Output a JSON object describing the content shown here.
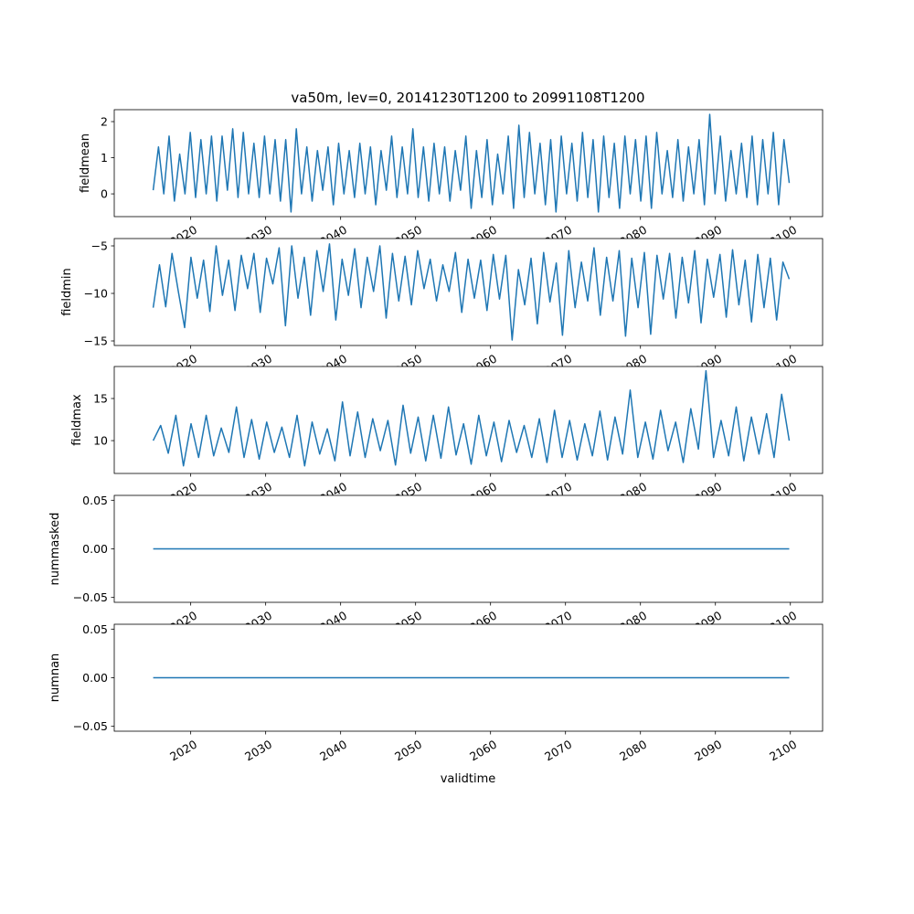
{
  "chart_data": {
    "type": "line",
    "title": "va50m, lev=0, 20141230T1200 to 20991108T1200",
    "xlabel": "validtime",
    "x_range": [
      2014.99,
      2099.85
    ],
    "xlim": [
      2009.8,
      2104.3
    ],
    "x_ticks": [
      2020,
      2030,
      2040,
      2050,
      2060,
      2070,
      2080,
      2090,
      2100
    ],
    "x_tick_labels": [
      "2020",
      "2030",
      "2040",
      "2050",
      "2060",
      "2070",
      "2080",
      "2090",
      "2100"
    ],
    "color": "#1f77b4",
    "panels": [
      {
        "ylabel": "fieldmean",
        "ylim": [
          -0.63,
          2.33
        ],
        "yticks": [
          0,
          1,
          2
        ],
        "ytick_labels": [
          "0",
          "1",
          "2"
        ],
        "values": [
          0.1,
          1.3,
          0.0,
          1.6,
          -0.2,
          1.1,
          0.0,
          1.7,
          -0.1,
          1.5,
          0.0,
          1.6,
          -0.2,
          1.6,
          0.1,
          1.8,
          -0.1,
          1.7,
          0.0,
          1.4,
          -0.1,
          1.6,
          0.0,
          1.5,
          -0.2,
          1.5,
          -0.5,
          1.8,
          0.0,
          1.3,
          -0.2,
          1.2,
          0.1,
          1.3,
          -0.3,
          1.4,
          0.0,
          1.2,
          -0.1,
          1.4,
          0.0,
          1.3,
          -0.3,
          1.2,
          0.1,
          1.6,
          -0.1,
          1.3,
          0.0,
          1.8,
          -0.1,
          1.3,
          -0.2,
          1.4,
          0.0,
          1.3,
          -0.2,
          1.2,
          0.1,
          1.6,
          -0.4,
          1.2,
          -0.1,
          1.5,
          -0.3,
          1.1,
          0.0,
          1.6,
          -0.4,
          1.9,
          -0.1,
          1.7,
          0.0,
          1.4,
          -0.3,
          1.5,
          -0.5,
          1.6,
          0.0,
          1.4,
          -0.2,
          1.7,
          -0.1,
          1.5,
          -0.5,
          1.6,
          -0.1,
          1.4,
          -0.4,
          1.6,
          0.0,
          1.5,
          -0.2,
          1.6,
          -0.4,
          1.7,
          0.0,
          1.2,
          -0.1,
          1.5,
          -0.2,
          1.3,
          0.0,
          1.5,
          -0.3,
          2.2,
          0.0,
          1.6,
          -0.2,
          1.2,
          0.0,
          1.4,
          -0.1,
          1.6,
          -0.3,
          1.5,
          0.0,
          1.7,
          -0.3,
          1.5,
          0.3
        ]
      },
      {
        "ylabel": "fieldmin",
        "ylim": [
          -15.48,
          -4.23
        ],
        "yticks": [
          -15,
          -10,
          -5
        ],
        "ytick_labels": [
          "−15",
          "−10",
          "−5"
        ],
        "values": [
          -11.5,
          -7.0,
          -11.4,
          -5.8,
          -9.8,
          -13.6,
          -6.2,
          -10.5,
          -6.5,
          -11.9,
          -5.0,
          -10.2,
          -6.5,
          -11.8,
          -6.0,
          -9.5,
          -5.8,
          -12.0,
          -6.3,
          -9.0,
          -5.2,
          -13.4,
          -5.0,
          -10.5,
          -6.2,
          -12.3,
          -5.5,
          -9.8,
          -4.8,
          -12.8,
          -6.4,
          -10.2,
          -5.3,
          -11.5,
          -6.2,
          -9.8,
          -5.0,
          -12.6,
          -5.8,
          -10.8,
          -6.1,
          -11.2,
          -5.5,
          -9.5,
          -6.4,
          -10.8,
          -7.0,
          -9.8,
          -5.7,
          -12.0,
          -6.4,
          -10.5,
          -6.5,
          -11.8,
          -5.9,
          -10.6,
          -6.0,
          -14.9,
          -7.5,
          -11.2,
          -6.3,
          -13.2,
          -5.7,
          -10.9,
          -6.8,
          -14.4,
          -5.5,
          -11.5,
          -6.7,
          -10.8,
          -5.2,
          -12.3,
          -6.2,
          -10.8,
          -5.5,
          -14.5,
          -6.3,
          -11.5,
          -5.7,
          -14.3,
          -6.0,
          -10.6,
          -5.8,
          -12.6,
          -6.2,
          -11.0,
          -5.5,
          -13.1,
          -6.4,
          -10.4,
          -5.9,
          -12.5,
          -5.4,
          -11.2,
          -6.5,
          -13.0,
          -5.9,
          -11.5,
          -6.3,
          -12.8,
          -6.7,
          -8.5
        ]
      },
      {
        "ylabel": "fieldmax",
        "ylim": [
          6.1,
          18.8
        ],
        "yticks": [
          10,
          15
        ],
        "ytick_labels": [
          "10",
          "15"
        ],
        "values": [
          10.0,
          11.8,
          8.5,
          13.0,
          7.0,
          12.0,
          8.0,
          13.0,
          8.2,
          11.5,
          8.6,
          14.0,
          8.0,
          12.5,
          7.8,
          12.2,
          8.6,
          11.6,
          8.0,
          13.0,
          7.0,
          12.2,
          8.4,
          11.4,
          7.6,
          14.6,
          8.2,
          13.4,
          8.0,
          12.6,
          8.8,
          12.4,
          7.1,
          14.2,
          8.5,
          12.8,
          7.6,
          13.0,
          7.9,
          14.0,
          8.3,
          12.0,
          7.2,
          13.0,
          8.2,
          12.2,
          7.5,
          12.4,
          8.6,
          11.8,
          8.0,
          12.6,
          7.4,
          13.6,
          8.0,
          12.4,
          7.7,
          12.0,
          8.2,
          13.5,
          7.7,
          12.8,
          8.4,
          16.0,
          8.0,
          12.2,
          7.8,
          13.6,
          8.8,
          12.2,
          7.4,
          13.8,
          9.0,
          18.3,
          8.0,
          12.4,
          8.2,
          14.0,
          7.6,
          12.8,
          8.4,
          13.2,
          8.0,
          15.5,
          10.0
        ]
      },
      {
        "ylabel": "nummasked",
        "ylim": [
          -0.055,
          0.055
        ],
        "yticks": [
          -0.05,
          0.0,
          0.05
        ],
        "ytick_labels": [
          "−0.05",
          "0.00",
          "0.05"
        ],
        "values": [
          0,
          0
        ]
      },
      {
        "ylabel": "numnan",
        "ylim": [
          -0.055,
          0.055
        ],
        "yticks": [
          -0.05,
          0.0,
          0.05
        ],
        "ytick_labels": [
          "−0.05",
          "0.00",
          "0.05"
        ],
        "values": [
          0,
          0
        ]
      }
    ]
  }
}
